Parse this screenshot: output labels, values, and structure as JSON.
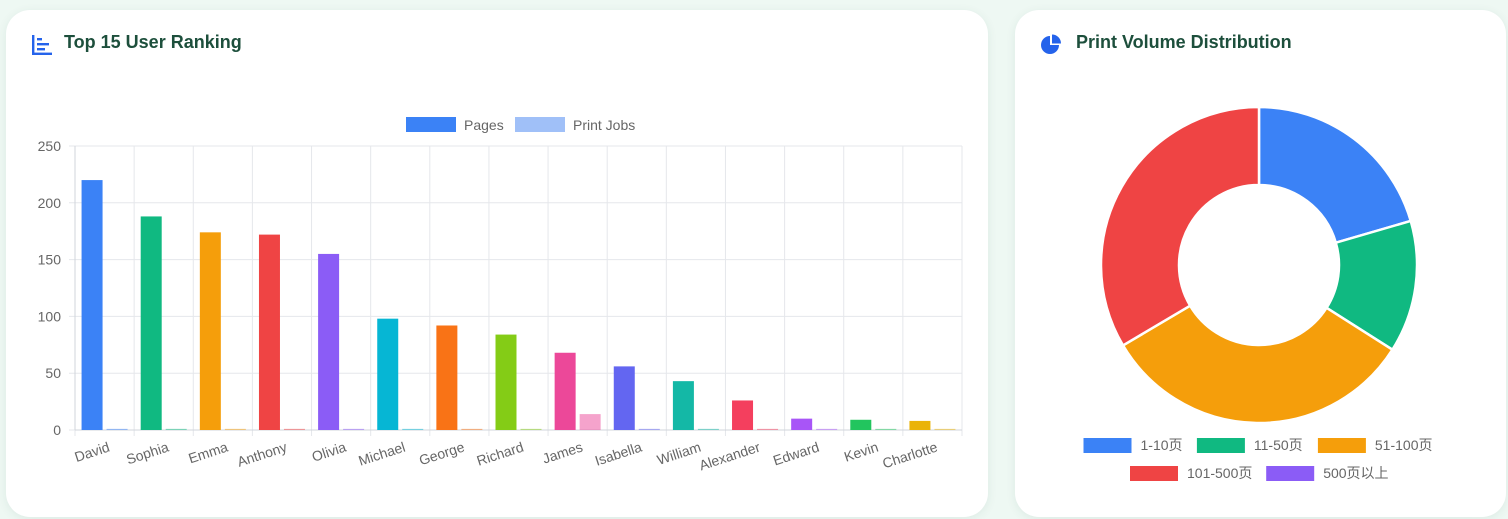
{
  "ranking_card": {
    "title": "Top 15 User Ranking",
    "icon": "bar-chart-icon"
  },
  "distribution_card": {
    "title": "Print Volume Distribution",
    "icon": "pie-chart-icon"
  },
  "chart_data": [
    {
      "type": "bar",
      "categories": [
        "David",
        "Sophia",
        "Emma",
        "Anthony",
        "Olivia",
        "Michael",
        "George",
        "Richard",
        "James",
        "Isabella",
        "William",
        "Alexander",
        "Edward",
        "Kevin",
        "Charlotte"
      ],
      "series": [
        {
          "name": "Pages",
          "values": [
            220,
            188,
            174,
            172,
            155,
            98,
            92,
            84,
            68,
            56,
            43,
            26,
            10,
            9,
            8
          ],
          "legend_color": "#3b82f6"
        },
        {
          "name": "Print Jobs",
          "values": [
            1,
            1,
            1,
            1,
            1,
            1,
            1,
            1,
            14,
            1,
            1,
            1,
            1,
            1,
            1
          ],
          "legend_color": "#a0c0f8"
        }
      ],
      "bar_colors": [
        "#3b82f6",
        "#10b981",
        "#f59e0b",
        "#ef4444",
        "#8b5cf6",
        "#06b6d4",
        "#f97316",
        "#84cc16",
        "#ec4899",
        "#6366f1",
        "#14b8a6",
        "#f43f5e",
        "#a855f7",
        "#22c55e",
        "#eab308"
      ],
      "ylim": [
        0,
        250
      ],
      "yticks": [
        0,
        50,
        100,
        150,
        200,
        250
      ],
      "grid": true,
      "legend_position": "top-center"
    },
    {
      "type": "pie",
      "variant": "doughnut",
      "labels": [
        "1-10页",
        "11-50页",
        "51-100页",
        "101-500页",
        "500页以上"
      ],
      "values": [
        20.5,
        13.5,
        32.5,
        33.5,
        0
      ],
      "colors": [
        "#3b82f6",
        "#10b981",
        "#f59e0b",
        "#ef4444",
        "#8b5cf6"
      ],
      "legend_position": "bottom"
    }
  ]
}
